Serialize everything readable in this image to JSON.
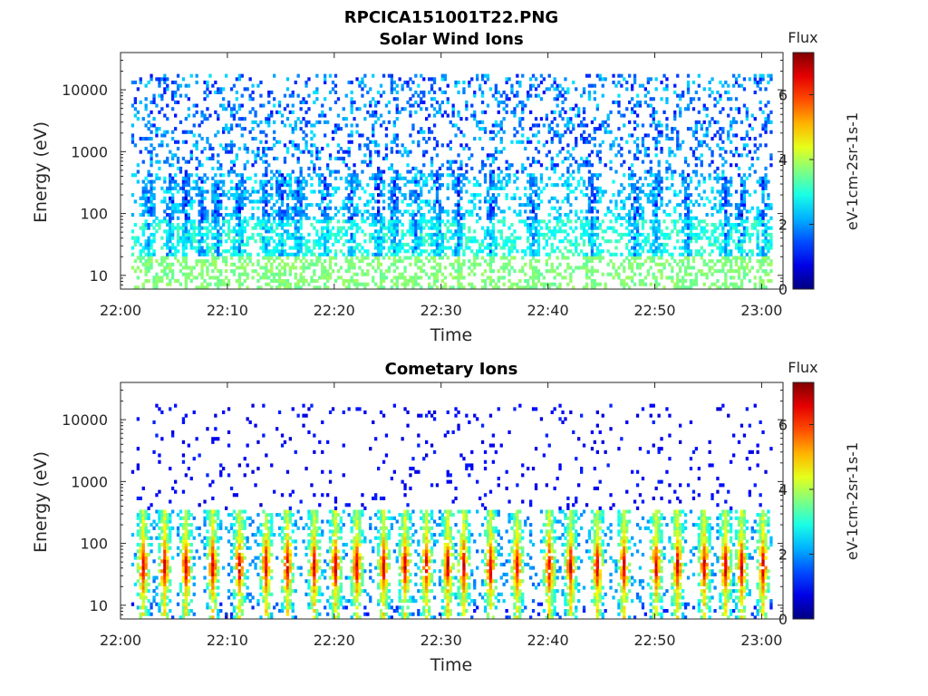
{
  "figure": {
    "title": "RPCICA151001T22.PNG"
  },
  "chart_data": [
    {
      "type": "heatmap",
      "title": "Solar Wind Ions",
      "xlabel": "Time",
      "ylabel": "Energy (eV)",
      "x_tick_labels": [
        "22:00",
        "22:10",
        "22:20",
        "22:30",
        "22:40",
        "22:50",
        "23:00"
      ],
      "x_ticks_min": [
        0,
        10,
        20,
        30,
        40,
        50,
        60
      ],
      "xlim_min": [
        0,
        62
      ],
      "y_scale": "log",
      "y_tick_labels": [
        "10",
        "100",
        "1000",
        "10000"
      ],
      "y_ticks": [
        10,
        100,
        1000,
        10000
      ],
      "ylim": [
        6,
        40000
      ],
      "colorbar": {
        "title": "Flux",
        "label": "eV-1cm-2sr-1s-1",
        "range": [
          0,
          7.3
        ],
        "tick_labels": [
          "0",
          "2",
          "4",
          "6"
        ],
        "ticks": [
          0,
          2,
          4,
          6
        ]
      },
      "colormap": "jet",
      "time_range_min": [
        1,
        61
      ],
      "cell": {
        "dt_min": 0.25,
        "dlog_e": 0.0535
      },
      "summary": {
        "background_flux_high_energy": 2,
        "vertical_burst_times_min": [
          2.5,
          4.5,
          6,
          7.5,
          9,
          11,
          13.5,
          15,
          16.5,
          19,
          21.5,
          24,
          25.5,
          27.5,
          29.5,
          31.5,
          34.5,
          38.5,
          44,
          48,
          50,
          53,
          56.5,
          58,
          60
        ],
        "burst_energy_range_eV": [
          10,
          500
        ],
        "burst_peak_flux": 2.5
      }
    },
    {
      "type": "heatmap",
      "title": "Cometary Ions",
      "xlabel": "Time",
      "ylabel": "Energy (eV)",
      "x_tick_labels": [
        "22:00",
        "22:10",
        "22:20",
        "22:30",
        "22:40",
        "22:50",
        "23:00"
      ],
      "x_ticks_min": [
        0,
        10,
        20,
        30,
        40,
        50,
        60
      ],
      "xlim_min": [
        0,
        62
      ],
      "y_scale": "log",
      "y_tick_labels": [
        "10",
        "100",
        "1000",
        "10000"
      ],
      "y_ticks": [
        10,
        100,
        1000,
        10000
      ],
      "ylim": [
        6,
        40000
      ],
      "colorbar": {
        "title": "Flux",
        "label": "eV-1cm-2sr-1s-1",
        "range": [
          0,
          7.3
        ],
        "tick_labels": [
          "0",
          "2",
          "4",
          "6"
        ],
        "ticks": [
          0,
          2,
          4,
          6
        ]
      },
      "colormap": "jet",
      "time_range_min": [
        1,
        61
      ],
      "cell": {
        "dt_min": 0.25,
        "dlog_e": 0.0535
      },
      "summary": {
        "background_flux_high_energy": 0.8,
        "burst_times_min": [
          2,
          4,
          6,
          8.5,
          11,
          13.5,
          15.5,
          18,
          20,
          22,
          24.5,
          26.5,
          28.5,
          30.5,
          32,
          34.5,
          37,
          40,
          42,
          44.5,
          47,
          50,
          52,
          54.5,
          56.5,
          58,
          60
        ],
        "burst_energy_range_eV": [
          8,
          300
        ],
        "burst_peak_flux": 5.5,
        "peak_energy_eV": 40
      }
    }
  ]
}
